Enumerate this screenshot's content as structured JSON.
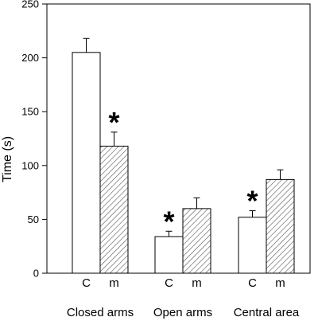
{
  "chart_data": {
    "type": "bar",
    "ylabel": "Time (s)",
    "xlabel": "",
    "title": "",
    "ylim": [
      0,
      250
    ],
    "yticks": [
      0,
      50,
      100,
      150,
      200,
      250
    ],
    "groups": [
      {
        "label": "Closed arms",
        "bars": [
          {
            "label": "C",
            "value": 205,
            "error": 13,
            "pattern": "solid",
            "significant": false
          },
          {
            "label": "m",
            "value": 118,
            "error": 13,
            "pattern": "hatched",
            "significant": true
          }
        ]
      },
      {
        "label": "Open arms",
        "bars": [
          {
            "label": "C",
            "value": 34,
            "error": 5,
            "pattern": "solid",
            "significant": true
          },
          {
            "label": "m",
            "value": 60,
            "error": 10,
            "pattern": "hatched",
            "significant": false
          }
        ]
      },
      {
        "label": "Central area",
        "bars": [
          {
            "label": "C",
            "value": 52,
            "error": 6,
            "pattern": "solid",
            "significant": true
          },
          {
            "label": "m",
            "value": 87,
            "error": 9,
            "pattern": "hatched",
            "significant": false
          }
        ]
      }
    ],
    "significance_marker": "*",
    "grid": false,
    "legend": "none"
  }
}
